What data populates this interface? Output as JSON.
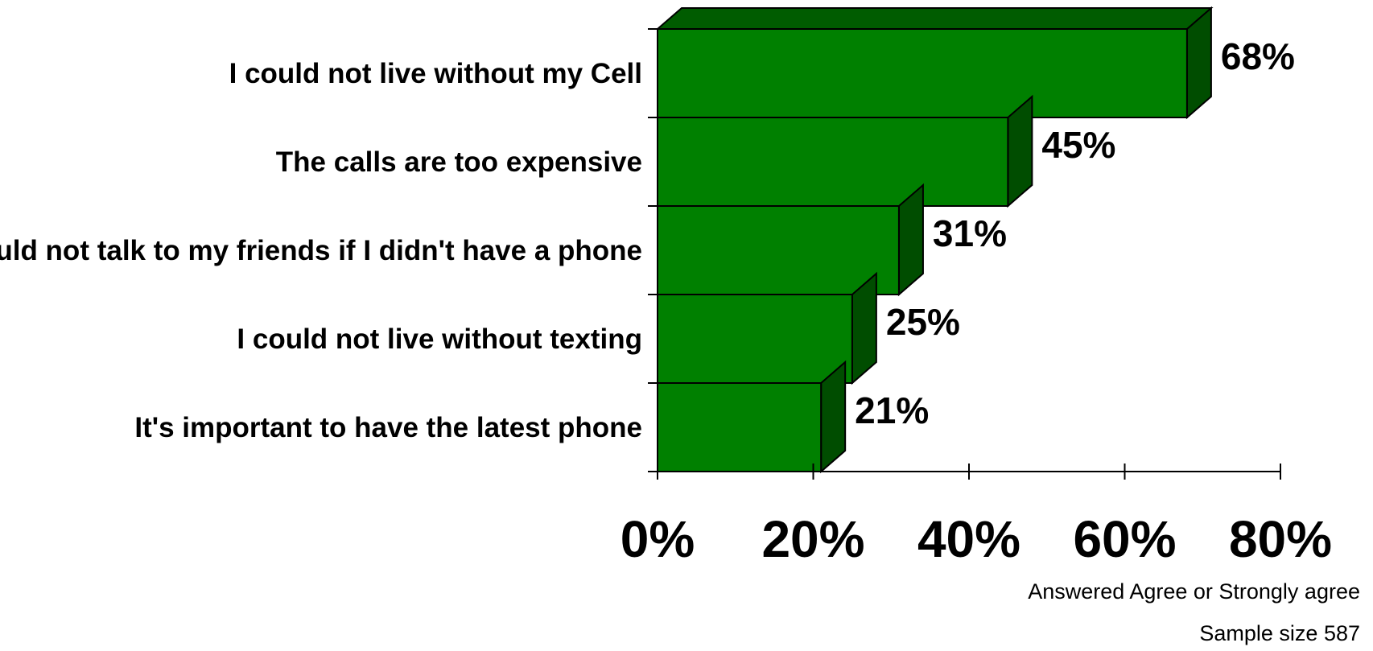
{
  "chart_data": {
    "type": "bar",
    "orientation": "horizontal",
    "style": "3d",
    "categories": [
      "I could not live without my Cell",
      "The calls are too expensive",
      "I would not talk to my friends if I didn't have a phone",
      "I could not live without texting",
      "It's important to have the latest phone"
    ],
    "values": [
      68,
      45,
      31,
      25,
      21
    ],
    "value_labels": [
      "68%",
      "45%",
      "31%",
      "25%",
      "21%"
    ],
    "xlim": [
      0,
      80
    ],
    "x_ticks": [
      0,
      20,
      40,
      60,
      80
    ],
    "x_tick_labels": [
      "0%",
      "20%",
      "40%",
      "60%",
      "80%"
    ],
    "grid": false,
    "colors": {
      "front": "#008000",
      "side": "#004d00",
      "top": "#005c00",
      "outline": "#000000"
    }
  },
  "notes": {
    "answer_basis": "Answered Agree or Strongly agree",
    "sample_size": "Sample size 587"
  }
}
